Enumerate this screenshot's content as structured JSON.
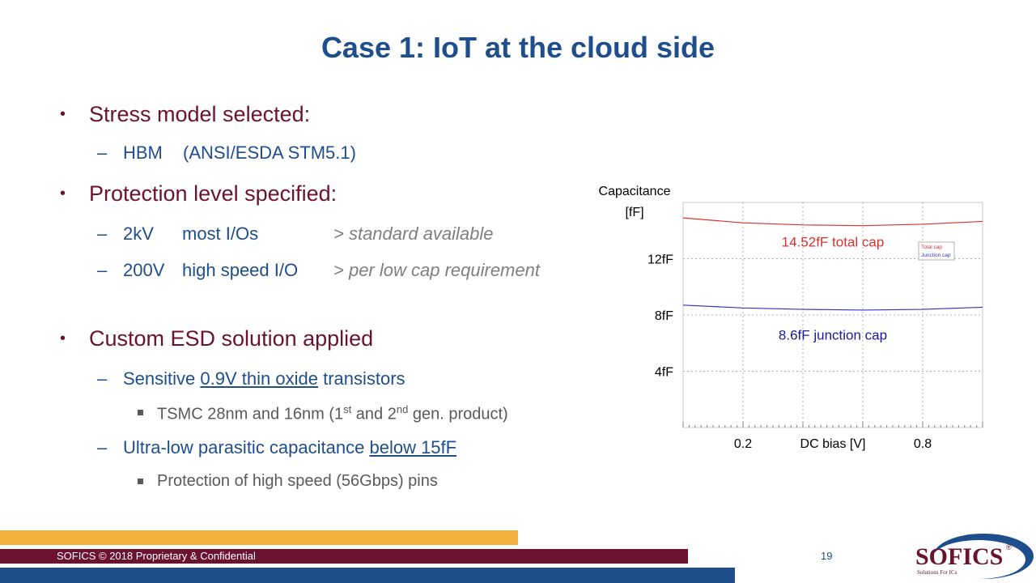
{
  "title": "Case 1: IoT at the cloud side",
  "bullets": {
    "b1": "Stress model selected:",
    "b1_s1a": "HBM",
    "b1_s1b": "(ANSI/ESDA STM5.1)",
    "b2": "Protection level specified:",
    "b2_s1a": "2kV",
    "b2_s1b": "most I/Os",
    "b2_s1c": "> standard available",
    "b2_s2a": "200V",
    "b2_s2b": "high speed I/O",
    "b2_s2c": "> per low cap requirement",
    "b3": "Custom ESD solution applied",
    "b3_s1a": "Sensitive",
    "b3_s1b": "0.9V thin oxide",
    "b3_s1c": "transistors",
    "b3_ss1a": "TSMC 28nm and 16nm (1",
    "b3_ss1b": "st",
    "b3_ss1c": " and 2",
    "b3_ss1d": "nd",
    "b3_ss1e": " gen. product)",
    "b3_s2a": "Ultra-low parasitic capacitance",
    "b3_s2b": "below 15fF",
    "b3_ss2": "Protection of high speed (56Gbps) pins"
  },
  "chart_data": {
    "type": "line",
    "ylabel_line1": "Capacitance",
    "ylabel_line2": "[fF]",
    "xlabel": "DC bias [V]",
    "xlim": [
      0,
      1
    ],
    "ylim": [
      0,
      16
    ],
    "yticks": [
      {
        "v": 4,
        "label": "4fF"
      },
      {
        "v": 8,
        "label": "8fF"
      },
      {
        "v": 12,
        "label": "12fF"
      }
    ],
    "xticks": [
      {
        "v": 0.2,
        "label": "0.2"
      },
      {
        "v": 0.8,
        "label": "0.8"
      }
    ],
    "grid": true,
    "legend": "top-right",
    "series": [
      {
        "name": "Total cap",
        "color": "#e03030",
        "x": [
          0,
          0.2,
          0.4,
          0.6,
          0.8,
          1.0
        ],
        "values": [
          14.9,
          14.55,
          14.4,
          14.35,
          14.45,
          14.65
        ]
      },
      {
        "name": "Junction cap",
        "color": "#3333cc",
        "x": [
          0,
          0.2,
          0.4,
          0.6,
          0.8,
          1.0
        ],
        "values": [
          8.7,
          8.5,
          8.4,
          8.35,
          8.4,
          8.55
        ]
      }
    ],
    "annotations": [
      {
        "text": "14.52fF total cap",
        "color": "#e03030",
        "x": 0.5,
        "y": 13.2
      },
      {
        "text": "8.6fF junction cap",
        "color": "#1a1aa0",
        "x": 0.5,
        "y": 6.6
      }
    ]
  },
  "footer": {
    "text": "SOFICS © 2018 Proprietary  & Confidential",
    "page": "19"
  },
  "logo": {
    "name": "SOFICS",
    "reg": "®",
    "tagline": "Solutions For ICs"
  }
}
